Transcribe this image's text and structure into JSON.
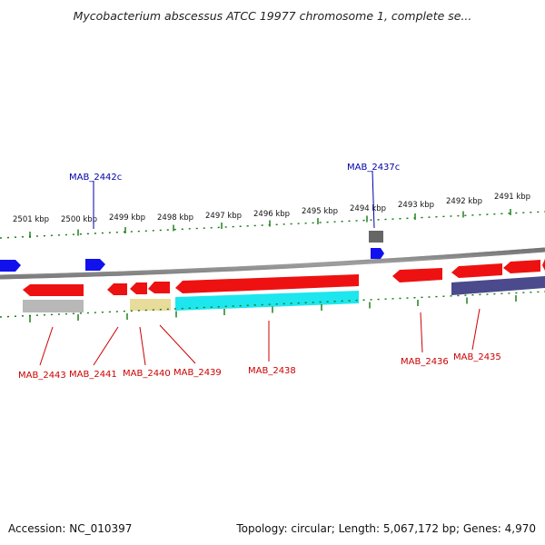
{
  "title": "Mycobacterium abscessus ATCC 19977 chromosome 1, complete se...",
  "footer": {
    "accession": "Accession: NC_010397",
    "stats": "Topology: circular; Length: 5,067,172 bp; Genes: 4,970"
  },
  "ruler": {
    "labels": [
      "2501 kbp",
      "2500 kbp",
      "2499 kbp",
      "2498 kbp",
      "2497 kbp",
      "2496 kbp",
      "2495 kbp",
      "2494 kbp",
      "2493 kbp",
      "2492 kbp",
      "2491 kbp"
    ]
  },
  "genes": {
    "forward": [
      {
        "name": "MAB_2442c",
        "label": "MAB_2442c"
      },
      {
        "name": "MAB_2437c",
        "label": "MAB_2437c"
      }
    ],
    "reverse": [
      {
        "name": "MAB_2443",
        "label": "MAB_2443"
      },
      {
        "name": "MAB_2441",
        "label": "MAB_2441"
      },
      {
        "name": "MAB_2440",
        "label": "MAB_2440"
      },
      {
        "name": "MAB_2439",
        "label": "MAB_2439"
      },
      {
        "name": "MAB_2438",
        "label": "MAB_2438"
      },
      {
        "name": "MAB_2436",
        "label": "MAB_2436"
      },
      {
        "name": "MAB_2435",
        "label": "MAB_2435"
      }
    ]
  },
  "colors": {
    "reverse_gene": "#ee1111",
    "forward_gene": "#1111ee",
    "backbone": "#8a8a8a",
    "ticks": "#117711",
    "cds_gray": "#b8b8b8",
    "cds_yellow": "#e8dc9a",
    "cds_cyan": "#1ee6ee",
    "cds_navy": "#4a4a8c",
    "cds_darkgray": "#666666"
  }
}
